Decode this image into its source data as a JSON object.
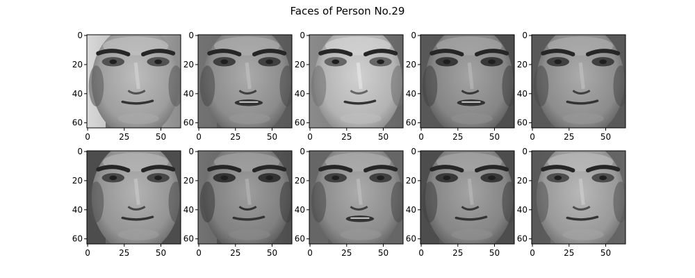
{
  "title": "Faces of Person No.29",
  "colors": {
    "axis": "#000000",
    "background": "#ffffff"
  },
  "panel": {
    "x_ticks": [
      {
        "value": 0,
        "label": "0"
      },
      {
        "value": 25,
        "label": "25"
      },
      {
        "value": 50,
        "label": "50"
      }
    ],
    "y_ticks": [
      {
        "value": 0,
        "label": "0"
      },
      {
        "value": 20,
        "label": "20"
      },
      {
        "value": 40,
        "label": "40"
      },
      {
        "value": 60,
        "label": "60"
      }
    ],
    "xlim": [
      -0.5,
      63.5
    ],
    "ylim": [
      63.5,
      -0.5
    ],
    "image_size": [
      64,
      64
    ],
    "colormap": "gray"
  },
  "faces": [
    {
      "row": 1,
      "col": 1,
      "bg_left": 0.85,
      "bg_right": 0.55,
      "mouth_open": false,
      "brightness": 0.62
    },
    {
      "row": 1,
      "col": 2,
      "bg_left": 0.45,
      "bg_right": 0.35,
      "mouth_open": true,
      "brightness": 0.55
    },
    {
      "row": 1,
      "col": 3,
      "bg_left": 0.55,
      "bg_right": 0.4,
      "mouth_open": false,
      "brightness": 0.7
    },
    {
      "row": 1,
      "col": 4,
      "bg_left": 0.35,
      "bg_right": 0.3,
      "mouth_open": true,
      "brightness": 0.52
    },
    {
      "row": 1,
      "col": 5,
      "bg_left": 0.35,
      "bg_right": 0.35,
      "mouth_open": false,
      "brightness": 0.55
    },
    {
      "row": 2,
      "col": 1,
      "bg_left": 0.3,
      "bg_right": 0.3,
      "mouth_open": false,
      "brightness": 0.58
    },
    {
      "row": 2,
      "col": 2,
      "bg_left": 0.45,
      "bg_right": 0.3,
      "mouth_open": false,
      "brightness": 0.5
    },
    {
      "row": 2,
      "col": 3,
      "bg_left": 0.4,
      "bg_right": 0.4,
      "mouth_open": true,
      "brightness": 0.55
    },
    {
      "row": 2,
      "col": 4,
      "bg_left": 0.3,
      "bg_right": 0.3,
      "mouth_open": false,
      "brightness": 0.52
    },
    {
      "row": 2,
      "col": 5,
      "bg_left": 0.35,
      "bg_right": 0.4,
      "mouth_open": false,
      "brightness": 0.6
    }
  ]
}
